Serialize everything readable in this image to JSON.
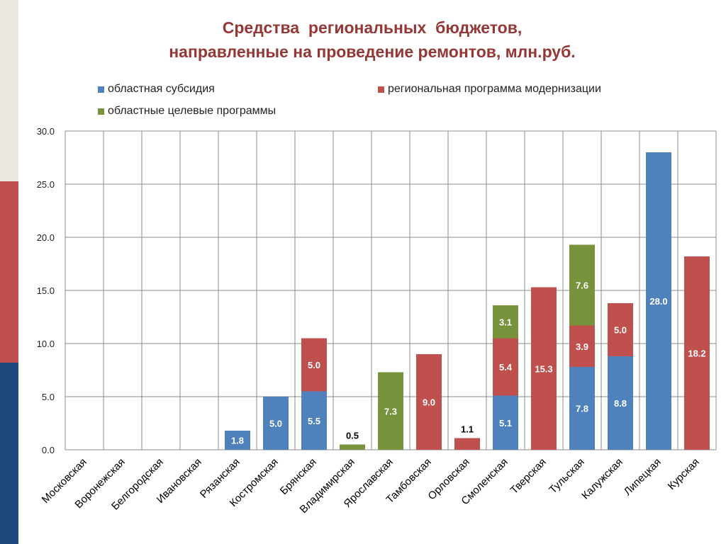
{
  "slide": {
    "title_line1": "Средства  региональных  бюджетов,",
    "title_line2": "направленные на проведение ремонтов, млн.руб."
  },
  "colors": {
    "subsidy": "#4f81bd",
    "modernization": "#c0504d",
    "target": "#77933c",
    "stripe_top": "#ebe8df",
    "stripe_mid": "#c0504d",
    "stripe_bottom": "#1f497d"
  },
  "chart_data": {
    "type": "bar",
    "stacked": true,
    "title": "",
    "xlabel": "",
    "ylabel": "",
    "ylim": [
      0,
      30
    ],
    "yticks": [
      "0.0",
      "5.0",
      "10.0",
      "15.0",
      "20.0",
      "25.0",
      "30.0"
    ],
    "grid": true,
    "legend_position": "top",
    "categories": [
      "Московская",
      "Воронежская",
      "Белгородская",
      "Ивановская",
      "Рязанская",
      "Костромская",
      "Брянская",
      "Владимирская",
      "Ярославская",
      "Тамбовская",
      "Орловская",
      "Смоленская",
      "Тверская",
      "Тульская",
      "Калужская",
      "Липецкая",
      "Курская"
    ],
    "series": [
      {
        "name": "областная субсидия",
        "color": "#4f81bd",
        "values": [
          0,
          0,
          0,
          0,
          1.8,
          5.0,
          5.5,
          0,
          0,
          0,
          0,
          5.1,
          0,
          7.8,
          8.8,
          28.0,
          0
        ]
      },
      {
        "name": "региональная программа модернизации",
        "color": "#c0504d",
        "values": [
          0,
          0,
          0,
          0,
          0,
          0,
          5.0,
          0,
          0,
          9.0,
          1.1,
          5.4,
          15.3,
          3.9,
          5.0,
          0,
          18.2
        ]
      },
      {
        "name": "областные целевые программы",
        "color": "#77933c",
        "values": [
          0,
          0,
          0,
          0,
          0,
          0,
          0,
          0.5,
          7.3,
          0,
          0,
          3.1,
          0,
          7.6,
          0,
          0,
          0
        ]
      }
    ]
  }
}
